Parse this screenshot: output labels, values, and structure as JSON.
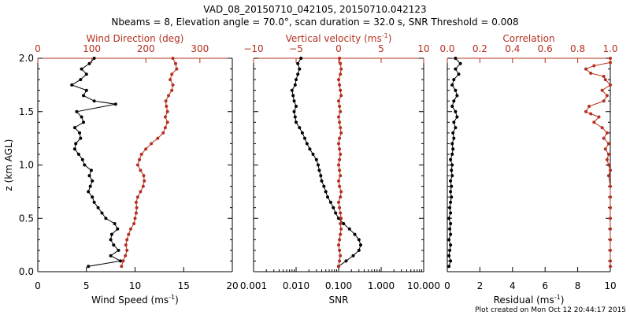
{
  "title_line1": "VAD_08_20150710_042105, 20150710.042123",
  "title_line2": "Nbeams = 8, Elevation angle = 70.0°, scan duration = 32.0 s, SNR Threshold = 0.008",
  "footer": "Plot created on Mon Oct 12 20:44:17 2015",
  "colors": {
    "primary": "#000000",
    "secondary": "#b5301f"
  },
  "chart_data": [
    {
      "type": "line",
      "ylabel": "z (km AGL)",
      "ylim": [
        0,
        2.0
      ],
      "yticks": [
        "0.0",
        "0.5",
        "1.0",
        "1.5",
        "2.0"
      ],
      "bottom_axis": {
        "label": "Wind Speed (ms",
        "unit_exp": "-1",
        "label_end": ")",
        "lim": [
          0,
          20
        ],
        "ticks": [
          "0",
          "5",
          "10",
          "15",
          "20"
        ]
      },
      "top_axis": {
        "label": "Wind Direction (deg)",
        "lim": [
          0,
          360
        ],
        "ticks": [
          "0",
          "100",
          "200",
          "300"
        ],
        "tick_values": [
          0,
          100,
          200,
          300
        ]
      },
      "series": [
        {
          "axis": "bottom",
          "color": "#000000",
          "points": [
            [
              5.2,
              0.05
            ],
            [
              8.5,
              0.1
            ],
            [
              7.5,
              0.15
            ],
            [
              8.3,
              0.2
            ],
            [
              7.8,
              0.25
            ],
            [
              7.5,
              0.3
            ],
            [
              7.6,
              0.35
            ],
            [
              8.2,
              0.4
            ],
            [
              7.9,
              0.45
            ],
            [
              7.0,
              0.5
            ],
            [
              6.6,
              0.55
            ],
            [
              6.2,
              0.6
            ],
            [
              5.8,
              0.65
            ],
            [
              5.6,
              0.7
            ],
            [
              5.2,
              0.75
            ],
            [
              5.4,
              0.8
            ],
            [
              5.6,
              0.85
            ],
            [
              5.3,
              0.9
            ],
            [
              5.5,
              0.95
            ],
            [
              4.8,
              1.0
            ],
            [
              4.6,
              1.05
            ],
            [
              4.2,
              1.1
            ],
            [
              3.8,
              1.15
            ],
            [
              3.9,
              1.2
            ],
            [
              4.4,
              1.25
            ],
            [
              4.3,
              1.3
            ],
            [
              3.8,
              1.35
            ],
            [
              4.7,
              1.4
            ],
            [
              4.5,
              1.45
            ],
            [
              4.0,
              1.5
            ],
            [
              8.0,
              1.57
            ],
            [
              5.8,
              1.6
            ],
            [
              4.7,
              1.65
            ],
            [
              5.0,
              1.7
            ],
            [
              3.5,
              1.75
            ],
            [
              4.4,
              1.8
            ],
            [
              5.0,
              1.85
            ],
            [
              4.5,
              1.9
            ],
            [
              5.3,
              1.95
            ],
            [
              5.8,
              2.0
            ]
          ]
        },
        {
          "axis": "top",
          "color": "#b5301f",
          "points": [
            [
              155,
              0.05
            ],
            [
              158,
              0.1
            ],
            [
              162,
              0.15
            ],
            [
              165,
              0.2
            ],
            [
              163,
              0.25
            ],
            [
              165,
              0.3
            ],
            [
              168,
              0.35
            ],
            [
              172,
              0.4
            ],
            [
              178,
              0.45
            ],
            [
              180,
              0.5
            ],
            [
              182,
              0.55
            ],
            [
              183,
              0.6
            ],
            [
              182,
              0.65
            ],
            [
              185,
              0.7
            ],
            [
              190,
              0.75
            ],
            [
              195,
              0.8
            ],
            [
              197,
              0.85
            ],
            [
              196,
              0.9
            ],
            [
              190,
              0.95
            ],
            [
              185,
              1.0
            ],
            [
              188,
              1.05
            ],
            [
              192,
              1.1
            ],
            [
              200,
              1.15
            ],
            [
              210,
              1.2
            ],
            [
              222,
              1.25
            ],
            [
              232,
              1.3
            ],
            [
              236,
              1.35
            ],
            [
              240,
              1.4
            ],
            [
              236,
              1.45
            ],
            [
              240,
              1.5
            ],
            [
              238,
              1.55
            ],
            [
              237,
              1.6
            ],
            [
              242,
              1.65
            ],
            [
              248,
              1.7
            ],
            [
              250,
              1.75
            ],
            [
              245,
              1.8
            ],
            [
              248,
              1.85
            ],
            [
              257,
              1.9
            ],
            [
              255,
              1.95
            ],
            [
              250,
              2.0
            ]
          ]
        }
      ]
    },
    {
      "type": "line",
      "ylim": [
        0,
        2.0
      ],
      "bottom_axis": {
        "label": "SNR",
        "scale": "log",
        "lim": [
          0.001,
          10
        ],
        "ticks": [
          "0.001",
          "0.010",
          "0.100",
          "1.000",
          "10.000"
        ],
        "tick_values": [
          0.001,
          0.01,
          0.1,
          1,
          10
        ]
      },
      "top_axis": {
        "label": "Vertical velocity (ms",
        "unit_exp": "-1",
        "label_end": ")",
        "lim": [
          -10,
          10
        ],
        "ticks": [
          "−10",
          "−5",
          "0",
          "5",
          "10"
        ],
        "tick_values": [
          -10,
          -5,
          0,
          5,
          10
        ]
      },
      "series": [
        {
          "axis": "bottom",
          "color": "#000000",
          "points": [
            [
              0.1,
              0.05
            ],
            [
              0.15,
              0.1
            ],
            [
              0.22,
              0.15
            ],
            [
              0.3,
              0.2
            ],
            [
              0.33,
              0.25
            ],
            [
              0.3,
              0.3
            ],
            [
              0.24,
              0.35
            ],
            [
              0.18,
              0.4
            ],
            [
              0.13,
              0.45
            ],
            [
              0.1,
              0.5
            ],
            [
              0.085,
              0.55
            ],
            [
              0.075,
              0.6
            ],
            [
              0.065,
              0.65
            ],
            [
              0.055,
              0.7
            ],
            [
              0.05,
              0.75
            ],
            [
              0.045,
              0.8
            ],
            [
              0.04,
              0.85
            ],
            [
              0.038,
              0.9
            ],
            [
              0.035,
              0.95
            ],
            [
              0.033,
              1.0
            ],
            [
              0.03,
              1.05
            ],
            [
              0.025,
              1.1
            ],
            [
              0.021,
              1.15
            ],
            [
              0.018,
              1.2
            ],
            [
              0.016,
              1.25
            ],
            [
              0.014,
              1.3
            ],
            [
              0.012,
              1.35
            ],
            [
              0.01,
              1.4
            ],
            [
              0.0095,
              1.45
            ],
            [
              0.009,
              1.5
            ],
            [
              0.01,
              1.55
            ],
            [
              0.009,
              1.6
            ],
            [
              0.0085,
              1.65
            ],
            [
              0.008,
              1.7
            ],
            [
              0.0095,
              1.75
            ],
            [
              0.01,
              1.8
            ],
            [
              0.011,
              1.85
            ],
            [
              0.012,
              1.9
            ],
            [
              0.011,
              1.95
            ],
            [
              0.013,
              2.0
            ]
          ]
        },
        {
          "axis": "top",
          "color": "#b5301f",
          "points": [
            [
              0.0,
              0.05
            ],
            [
              0.1,
              0.1
            ],
            [
              0.2,
              0.15
            ],
            [
              0.1,
              0.2
            ],
            [
              0.0,
              0.25
            ],
            [
              0.1,
              0.3
            ],
            [
              0.2,
              0.35
            ],
            [
              0.3,
              0.4
            ],
            [
              0.2,
              0.45
            ],
            [
              0.3,
              0.5
            ],
            [
              0.2,
              0.55
            ],
            [
              0.1,
              0.6
            ],
            [
              0.0,
              0.65
            ],
            [
              0.2,
              0.7
            ],
            [
              0.3,
              0.75
            ],
            [
              0.1,
              0.8
            ],
            [
              0.0,
              0.85
            ],
            [
              0.2,
              0.9
            ],
            [
              0.1,
              0.95
            ],
            [
              0.0,
              1.0
            ],
            [
              0.1,
              1.05
            ],
            [
              0.2,
              1.1
            ],
            [
              0.1,
              1.15
            ],
            [
              0.0,
              1.2
            ],
            [
              0.1,
              1.25
            ],
            [
              0.3,
              1.3
            ],
            [
              0.2,
              1.35
            ],
            [
              0.1,
              1.4
            ],
            [
              0.0,
              1.45
            ],
            [
              0.2,
              1.5
            ],
            [
              0.1,
              1.55
            ],
            [
              0.0,
              1.6
            ],
            [
              0.3,
              1.65
            ],
            [
              0.2,
              1.7
            ],
            [
              0.1,
              1.75
            ],
            [
              0.0,
              1.8
            ],
            [
              0.2,
              1.85
            ],
            [
              0.3,
              1.9
            ],
            [
              0.2,
              1.95
            ],
            [
              0.1,
              2.0
            ]
          ]
        }
      ]
    },
    {
      "type": "line",
      "ylim": [
        0,
        2.0
      ],
      "bottom_axis": {
        "label": "Residual (ms",
        "unit_exp": "-1",
        "label_end": ")",
        "lim": [
          0,
          10
        ],
        "ticks": [
          "0",
          "2",
          "4",
          "6",
          "8",
          "10"
        ]
      },
      "top_axis": {
        "label": "Correlation",
        "lim": [
          0,
          1.0
        ],
        "ticks": [
          "0.0",
          "0.2",
          "0.4",
          "0.6",
          "0.8",
          "1.0"
        ],
        "tick_values": [
          0,
          0.2,
          0.4,
          0.6,
          0.8,
          1.0
        ]
      },
      "series": [
        {
          "axis": "bottom",
          "color": "#000000",
          "points": [
            [
              0.1,
              0.05
            ],
            [
              0.2,
              0.1
            ],
            [
              0.1,
              0.15
            ],
            [
              0.15,
              0.2
            ],
            [
              0.2,
              0.25
            ],
            [
              0.1,
              0.3
            ],
            [
              0.2,
              0.35
            ],
            [
              0.15,
              0.4
            ],
            [
              0.2,
              0.45
            ],
            [
              0.1,
              0.5
            ],
            [
              0.2,
              0.55
            ],
            [
              0.15,
              0.6
            ],
            [
              0.2,
              0.65
            ],
            [
              0.25,
              0.7
            ],
            [
              0.2,
              0.75
            ],
            [
              0.25,
              0.8
            ],
            [
              0.2,
              0.85
            ],
            [
              0.3,
              0.9
            ],
            [
              0.25,
              0.95
            ],
            [
              0.3,
              1.0
            ],
            [
              0.2,
              1.05
            ],
            [
              0.3,
              1.1
            ],
            [
              0.35,
              1.15
            ],
            [
              0.3,
              1.2
            ],
            [
              0.4,
              1.25
            ],
            [
              0.35,
              1.3
            ],
            [
              0.5,
              1.35
            ],
            [
              0.4,
              1.4
            ],
            [
              0.6,
              1.45
            ],
            [
              0.5,
              1.5
            ],
            [
              0.3,
              1.55
            ],
            [
              0.4,
              1.6
            ],
            [
              0.6,
              1.65
            ],
            [
              0.5,
              1.7
            ],
            [
              0.3,
              1.75
            ],
            [
              0.4,
              1.8
            ],
            [
              0.7,
              1.85
            ],
            [
              0.5,
              1.9
            ],
            [
              0.8,
              1.95
            ],
            [
              0.5,
              2.0
            ]
          ]
        },
        {
          "axis": "top",
          "color": "#b5301f",
          "points": [
            [
              1.0,
              0.05
            ],
            [
              1.0,
              0.1
            ],
            [
              1.0,
              0.2
            ],
            [
              1.0,
              0.3
            ],
            [
              1.0,
              0.4
            ],
            [
              1.0,
              0.5
            ],
            [
              1.0,
              0.6
            ],
            [
              1.0,
              0.7
            ],
            [
              1.0,
              0.8
            ],
            [
              0.99,
              0.9
            ],
            [
              1.0,
              0.95
            ],
            [
              0.99,
              1.0
            ],
            [
              0.98,
              1.05
            ],
            [
              0.99,
              1.1
            ],
            [
              0.97,
              1.15
            ],
            [
              0.99,
              1.2
            ],
            [
              0.96,
              1.25
            ],
            [
              0.98,
              1.3
            ],
            [
              0.95,
              1.35
            ],
            [
              0.9,
              1.4
            ],
            [
              0.93,
              1.45
            ],
            [
              0.88,
              1.48
            ],
            [
              0.85,
              1.5
            ],
            [
              0.87,
              1.55
            ],
            [
              0.96,
              1.6
            ],
            [
              0.98,
              1.65
            ],
            [
              0.95,
              1.7
            ],
            [
              1.0,
              1.75
            ],
            [
              0.97,
              1.8
            ],
            [
              0.96,
              1.83
            ],
            [
              0.88,
              1.86
            ],
            [
              0.85,
              1.9
            ],
            [
              0.9,
              1.93
            ],
            [
              1.0,
              1.96
            ],
            [
              1.0,
              2.0
            ]
          ]
        }
      ]
    }
  ]
}
